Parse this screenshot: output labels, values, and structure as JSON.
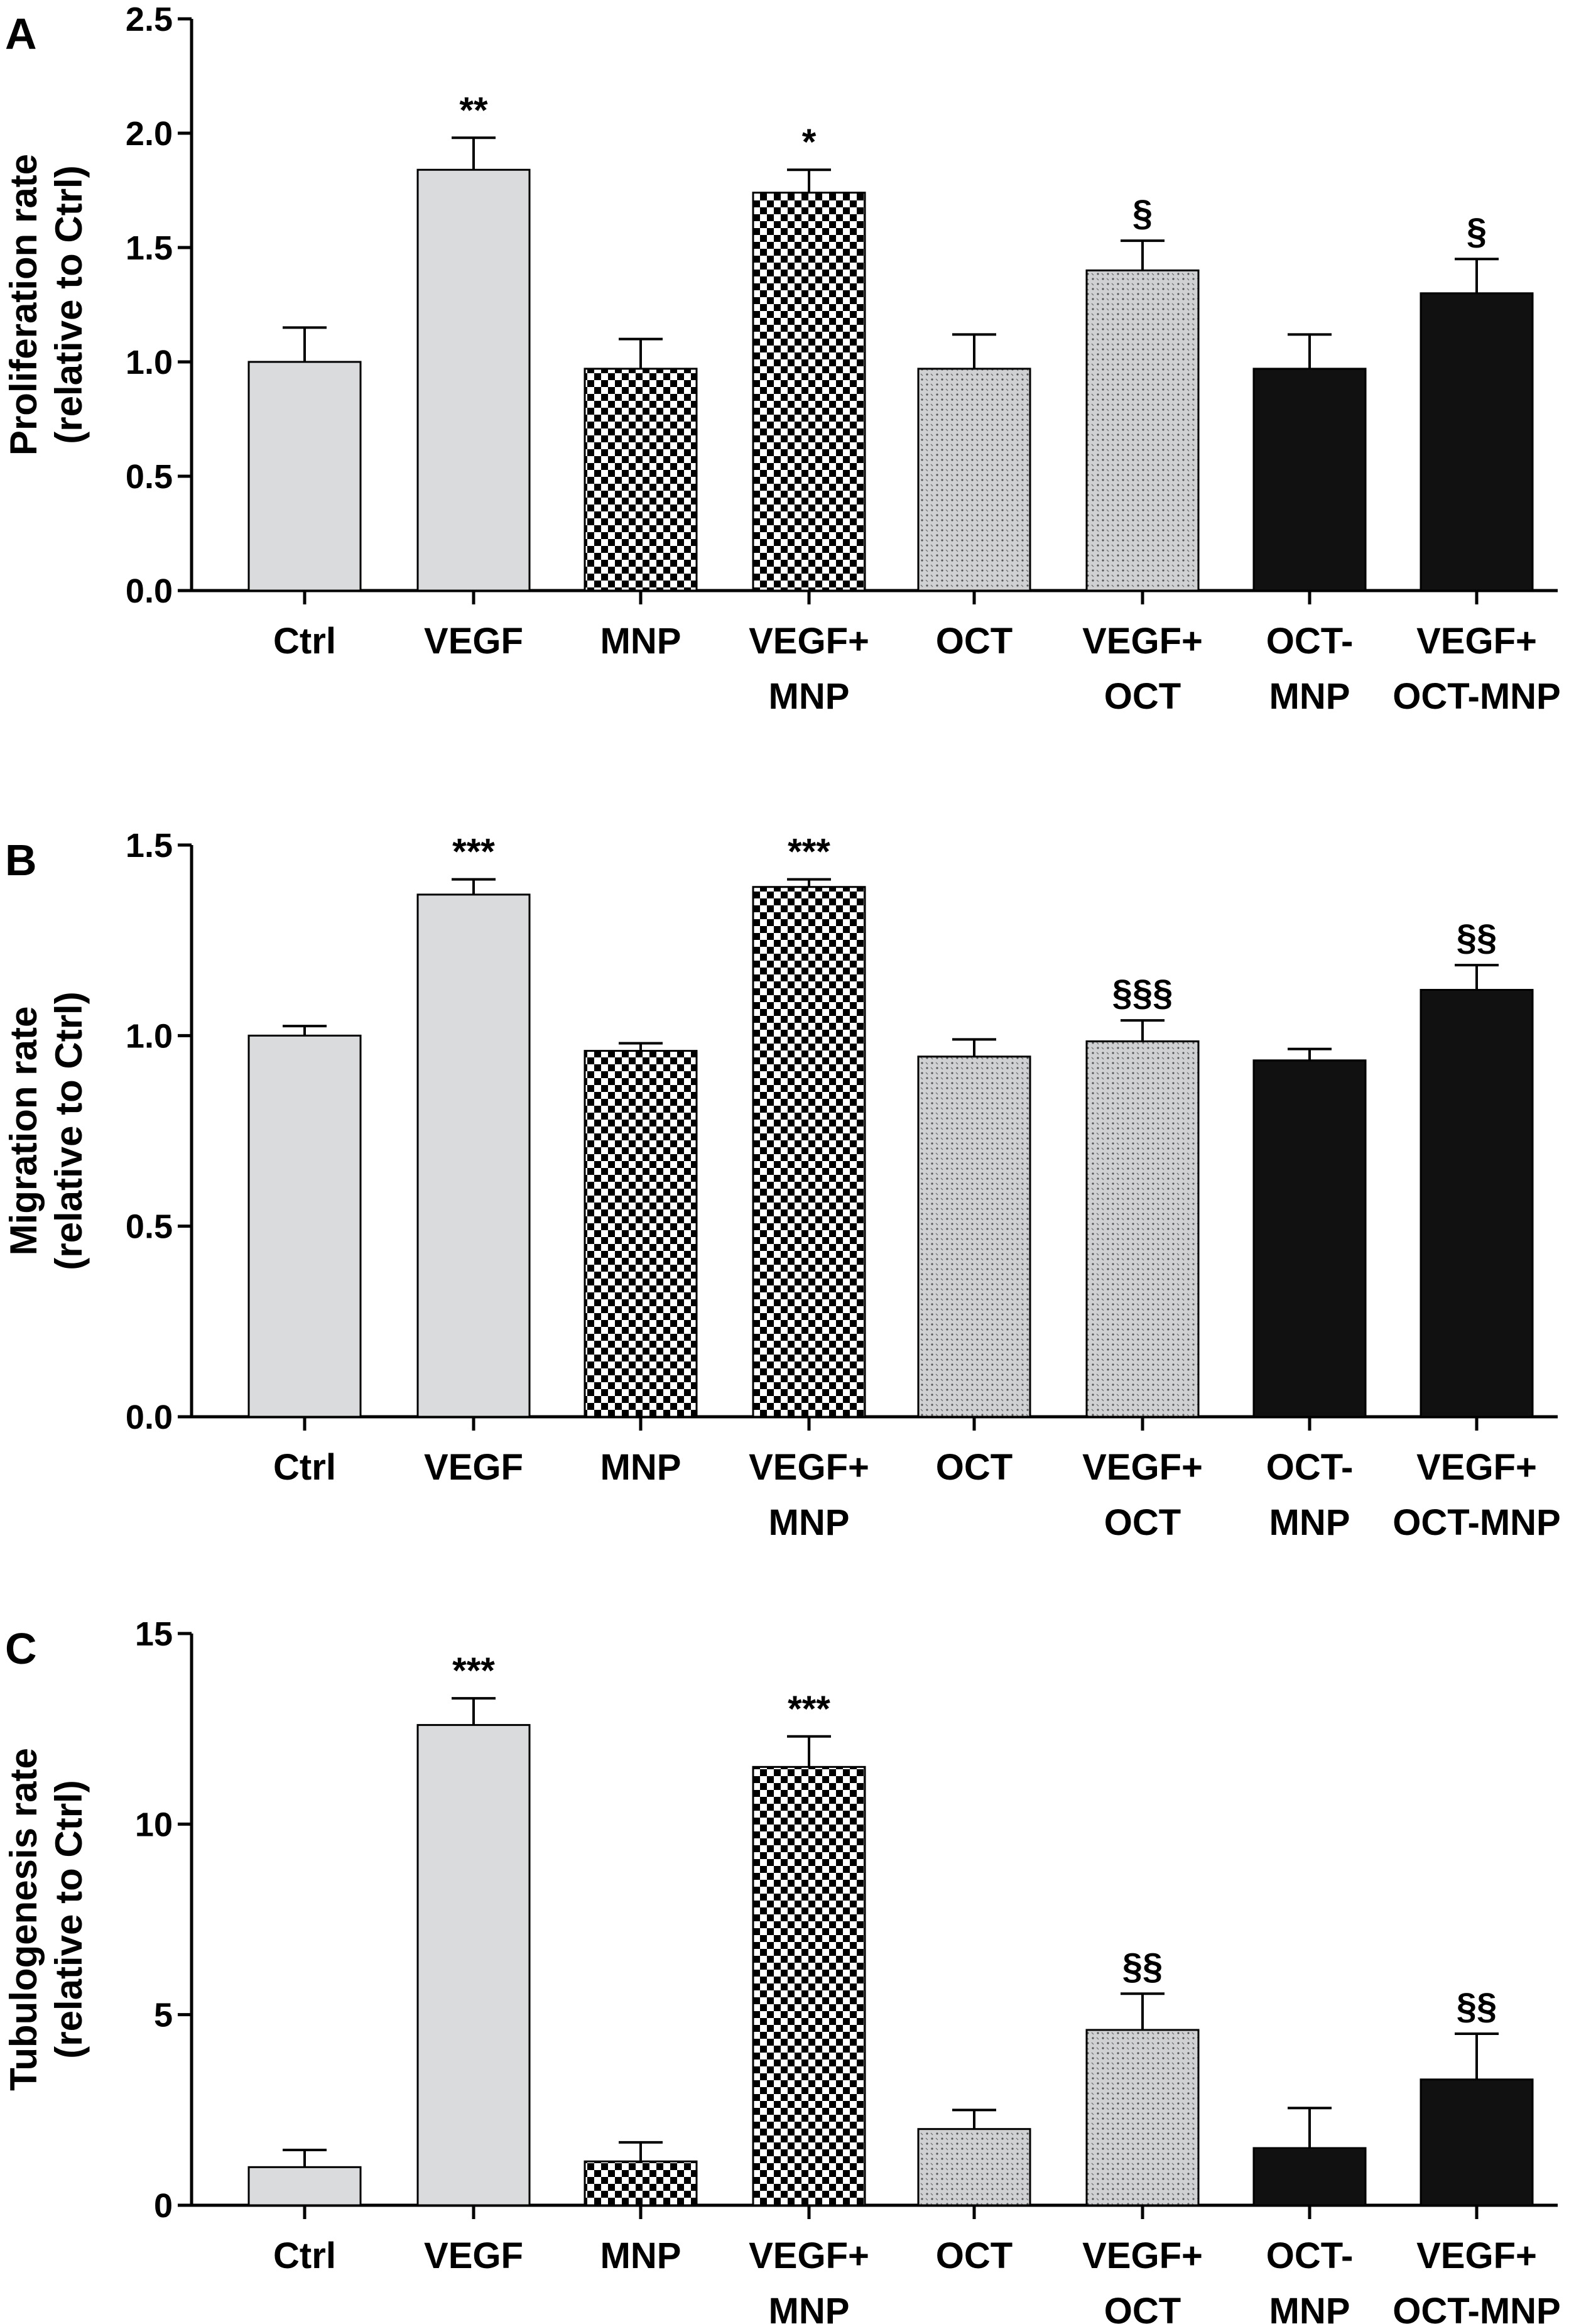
{
  "chart_data": [
    {
      "type": "bar",
      "panel_letter": "A",
      "ylabel_lines": [
        "Proliferation rate",
        "(relative to Ctrl)"
      ],
      "ylim": [
        0,
        2.5
      ],
      "yticks": [
        "0.0",
        "0.5",
        "1.0",
        "1.5",
        "2.0",
        "2.5"
      ],
      "ytick_values": [
        0,
        0.5,
        1.0,
        1.5,
        2.0,
        2.5
      ],
      "categories": [
        [
          "Ctrl"
        ],
        [
          "VEGF"
        ],
        [
          "MNP"
        ],
        [
          "VEGF+",
          "MNP"
        ],
        [
          "OCT"
        ],
        [
          "VEGF+",
          "OCT"
        ],
        [
          "OCT-",
          "MNP"
        ],
        [
          "VEGF+",
          "OCT-MNP"
        ]
      ],
      "values": [
        1.0,
        1.84,
        0.97,
        1.74,
        0.97,
        1.4,
        0.97,
        1.3
      ],
      "errors": [
        0.15,
        0.14,
        0.13,
        0.1,
        0.15,
        0.13,
        0.15,
        0.15
      ],
      "significance": [
        "",
        "**",
        "",
        "*",
        "",
        "§",
        "",
        "§"
      ]
    },
    {
      "type": "bar",
      "panel_letter": "B",
      "ylabel_lines": [
        "Migration rate",
        "(relative to Ctrl)"
      ],
      "ylim": [
        0,
        1.5
      ],
      "yticks": [
        "0.0",
        "0.5",
        "1.0",
        "1.5"
      ],
      "ytick_values": [
        0,
        0.5,
        1.0,
        1.5
      ],
      "categories": [
        [
          "Ctrl"
        ],
        [
          "VEGF"
        ],
        [
          "MNP"
        ],
        [
          "VEGF+",
          "MNP"
        ],
        [
          "OCT"
        ],
        [
          "VEGF+",
          "OCT"
        ],
        [
          "OCT-",
          "MNP"
        ],
        [
          "VEGF+",
          "OCT-MNP"
        ]
      ],
      "values": [
        1.0,
        1.37,
        0.96,
        1.39,
        0.945,
        0.985,
        0.935,
        1.12
      ],
      "errors": [
        0.025,
        0.04,
        0.02,
        0.02,
        0.045,
        0.055,
        0.03,
        0.065
      ],
      "significance": [
        "",
        "***",
        "",
        "***",
        "",
        "§§§",
        "",
        "§§"
      ]
    },
    {
      "type": "bar",
      "panel_letter": "C",
      "ylabel_lines": [
        "Tubulogenesis rate",
        "(relative to Ctrl)"
      ],
      "ylim": [
        0,
        15
      ],
      "yticks": [
        "0",
        "5",
        "10",
        "15"
      ],
      "ytick_values": [
        0,
        5,
        10,
        15
      ],
      "categories": [
        [
          "Ctrl"
        ],
        [
          "VEGF"
        ],
        [
          "MNP"
        ],
        [
          "VEGF+",
          "MNP"
        ],
        [
          "OCT"
        ],
        [
          "VEGF+",
          "OCT"
        ],
        [
          "OCT-",
          "MNP"
        ],
        [
          "VEGF+",
          "OCT-MNP"
        ]
      ],
      "values": [
        1.0,
        12.6,
        1.15,
        11.5,
        2.0,
        4.6,
        1.5,
        3.3
      ],
      "errors": [
        0.45,
        0.7,
        0.5,
        0.8,
        0.5,
        0.95,
        1.05,
        1.2
      ],
      "significance": [
        "",
        "***",
        "",
        "***",
        "",
        "§§",
        "",
        "§§"
      ]
    }
  ],
  "bar_styles": [
    "solid-gray",
    "solid-gray",
    "checker",
    "checker",
    "dots",
    "dots",
    "solid-black",
    "solid-black"
  ],
  "colors": {
    "gray_fill": "#d9dbdc",
    "black_fill": "#111111",
    "axis": "#000000",
    "dot_bg": "#cfd1d2"
  }
}
